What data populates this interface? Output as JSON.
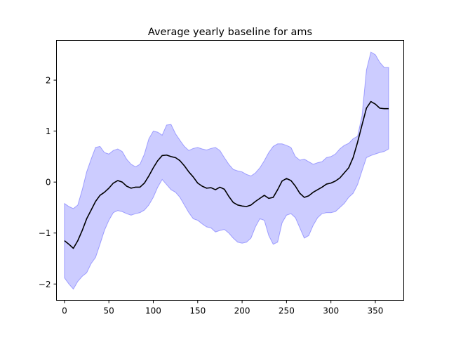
{
  "chart_data": {
    "type": "line",
    "title": "Average yearly baseline for ams",
    "xlabel": "",
    "ylabel": "",
    "xlim": [
      -9,
      382
    ],
    "ylim": [
      -2.32,
      2.78
    ],
    "xticks": [
      0,
      50,
      100,
      150,
      200,
      250,
      300,
      350
    ],
    "yticks": [
      -2,
      -1,
      0,
      1,
      2
    ],
    "grid": false,
    "legend": "none",
    "series": [
      {
        "kind": "line",
        "color": "#000000",
        "x": [
          0,
          5,
          10,
          15,
          20,
          25,
          30,
          35,
          40,
          45,
          50,
          55,
          60,
          65,
          70,
          75,
          80,
          85,
          90,
          95,
          100,
          105,
          110,
          115,
          120,
          125,
          130,
          135,
          140,
          145,
          150,
          155,
          160,
          165,
          170,
          175,
          180,
          185,
          190,
          195,
          200,
          205,
          210,
          215,
          220,
          225,
          230,
          235,
          240,
          245,
          250,
          255,
          260,
          265,
          270,
          275,
          280,
          285,
          290,
          295,
          300,
          305,
          310,
          315,
          320,
          325,
          330,
          335,
          340,
          345,
          350,
          355,
          360,
          365
        ],
        "y": [
          -1.15,
          -1.22,
          -1.3,
          -1.15,
          -0.95,
          -0.72,
          -0.55,
          -0.38,
          -0.26,
          -0.2,
          -0.12,
          -0.02,
          0.03,
          0.0,
          -0.08,
          -0.12,
          -0.1,
          -0.1,
          -0.02,
          0.12,
          0.28,
          0.42,
          0.52,
          0.53,
          0.5,
          0.48,
          0.42,
          0.32,
          0.2,
          0.1,
          -0.02,
          -0.08,
          -0.12,
          -0.11,
          -0.15,
          -0.1,
          -0.14,
          -0.28,
          -0.4,
          -0.45,
          -0.47,
          -0.48,
          -0.45,
          -0.38,
          -0.32,
          -0.26,
          -0.32,
          -0.3,
          -0.15,
          0.02,
          0.07,
          0.03,
          -0.08,
          -0.22,
          -0.3,
          -0.27,
          -0.2,
          -0.15,
          -0.1,
          -0.04,
          -0.02,
          0.02,
          0.08,
          0.18,
          0.28,
          0.48,
          0.78,
          1.12,
          1.45,
          1.58,
          1.53,
          1.45,
          1.44,
          1.44
        ]
      },
      {
        "kind": "band",
        "color": "#0000ff",
        "opacity": 0.2,
        "x": [
          0,
          5,
          10,
          15,
          20,
          25,
          30,
          35,
          40,
          45,
          50,
          55,
          60,
          65,
          70,
          75,
          80,
          85,
          90,
          95,
          100,
          105,
          110,
          115,
          120,
          125,
          130,
          135,
          140,
          145,
          150,
          155,
          160,
          165,
          170,
          175,
          180,
          185,
          190,
          195,
          200,
          205,
          210,
          215,
          220,
          225,
          230,
          235,
          240,
          245,
          250,
          255,
          260,
          265,
          270,
          275,
          280,
          285,
          290,
          295,
          300,
          305,
          310,
          315,
          320,
          325,
          330,
          335,
          340,
          345,
          350,
          355,
          360,
          365
        ],
        "lower": [
          -1.88,
          -2.0,
          -2.1,
          -1.95,
          -1.85,
          -1.78,
          -1.6,
          -1.48,
          -1.22,
          -0.95,
          -0.75,
          -0.6,
          -0.56,
          -0.58,
          -0.62,
          -0.65,
          -0.62,
          -0.6,
          -0.55,
          -0.45,
          -0.3,
          -0.1,
          0.05,
          -0.05,
          -0.15,
          -0.2,
          -0.3,
          -0.45,
          -0.6,
          -0.72,
          -0.75,
          -0.82,
          -0.88,
          -0.9,
          -0.98,
          -0.95,
          -0.93,
          -1.0,
          -1.1,
          -1.18,
          -1.2,
          -1.18,
          -1.1,
          -0.88,
          -0.72,
          -0.75,
          -1.05,
          -1.22,
          -1.18,
          -0.8,
          -0.65,
          -0.62,
          -0.7,
          -0.9,
          -1.1,
          -1.05,
          -0.85,
          -0.7,
          -0.62,
          -0.6,
          -0.6,
          -0.58,
          -0.5,
          -0.42,
          -0.3,
          -0.22,
          -0.05,
          0.22,
          0.48,
          0.52,
          0.55,
          0.58,
          0.6,
          0.65
        ],
        "upper": [
          -0.42,
          -0.48,
          -0.52,
          -0.45,
          -0.15,
          0.2,
          0.45,
          0.68,
          0.7,
          0.58,
          0.55,
          0.62,
          0.65,
          0.6,
          0.45,
          0.35,
          0.3,
          0.35,
          0.55,
          0.85,
          1.0,
          0.98,
          0.92,
          1.12,
          1.13,
          0.95,
          0.82,
          0.7,
          0.62,
          0.66,
          0.68,
          0.65,
          0.63,
          0.66,
          0.68,
          0.62,
          0.48,
          0.35,
          0.25,
          0.22,
          0.2,
          0.15,
          0.12,
          0.18,
          0.28,
          0.42,
          0.58,
          0.7,
          0.75,
          0.75,
          0.72,
          0.68,
          0.5,
          0.43,
          0.45,
          0.4,
          0.35,
          0.38,
          0.4,
          0.48,
          0.5,
          0.55,
          0.65,
          0.72,
          0.76,
          0.85,
          0.9,
          1.3,
          2.2,
          2.55,
          2.5,
          2.35,
          2.25,
          2.25
        ]
      }
    ]
  }
}
